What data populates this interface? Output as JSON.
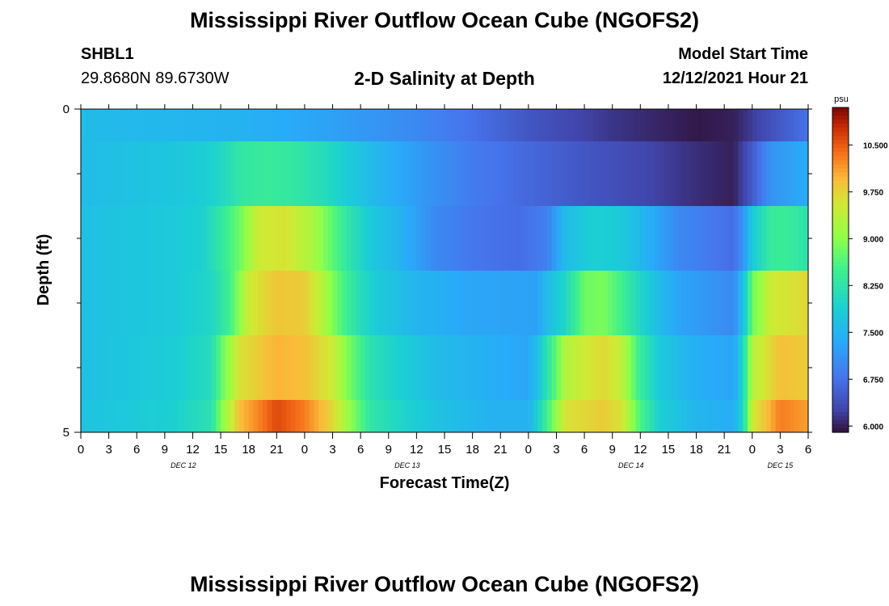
{
  "header": {
    "title": "Mississippi River Outflow Ocean Cube (NGOFS2)",
    "station_id": "SHBL1",
    "coordinates": "29.8680N  89.6730W",
    "subtitle": "2-D Salinity at Depth",
    "model_start_label": "Model Start Time",
    "model_start_value": "12/12/2021 Hour 21"
  },
  "footer": {
    "title": "Mississippi River Outflow Ocean Cube (NGOFS2)"
  },
  "colors": {
    "background": "#ffffff",
    "axis": "#000000"
  },
  "chart_data": {
    "type": "heatmap",
    "title": "2-D Salinity at Depth",
    "xlabel": "Forecast Time(Z)",
    "ylabel": "Depth (ft)",
    "units": "psu",
    "x_tick_labels": [
      "0",
      "3",
      "6",
      "9",
      "12",
      "15",
      "18",
      "21",
      "0",
      "3",
      "6",
      "9",
      "12",
      "15",
      "18",
      "21",
      "0",
      "3",
      "6",
      "9",
      "12",
      "15",
      "18",
      "21",
      "0",
      "3",
      "6"
    ],
    "x_hours": [
      0,
      3,
      6,
      9,
      12,
      15,
      18,
      21,
      24,
      27,
      30,
      33,
      36,
      39,
      42,
      45,
      48,
      51,
      54,
      57,
      60,
      63,
      66,
      69,
      72,
      75,
      78
    ],
    "date_labels": [
      {
        "text": "DEC 12",
        "hour": 11
      },
      {
        "text": "DEC 13",
        "hour": 35
      },
      {
        "text": "DEC 14",
        "hour": 59
      },
      {
        "text": "DEC 15",
        "hour": 75
      }
    ],
    "y_tick_labels": [
      "0",
      "5"
    ],
    "ylim": [
      0,
      5
    ],
    "xlim": [
      0,
      78
    ],
    "colorbar_ticks": [
      "10.500",
      "9.750",
      "9.000",
      "8.250",
      "7.500",
      "6.750",
      "6.000"
    ],
    "colorbar_range": [
      5.9,
      11.1
    ],
    "depth_layers": [
      {
        "depth_top": 0,
        "depth_bottom": 0.5,
        "keyframes": [
          [
            0,
            7.6
          ],
          [
            18,
            7.45
          ],
          [
            27,
            7.25
          ],
          [
            36,
            7.0
          ],
          [
            42,
            6.75
          ],
          [
            48,
            6.45
          ],
          [
            57,
            6.15
          ],
          [
            66,
            5.95
          ],
          [
            70,
            6.0
          ],
          [
            74,
            6.4
          ],
          [
            78,
            6.75
          ]
        ]
      },
      {
        "depth_top": 0.5,
        "depth_bottom": 1.5,
        "keyframes": [
          [
            0,
            7.6
          ],
          [
            10,
            7.75
          ],
          [
            13,
            7.85
          ],
          [
            15,
            8.0
          ],
          [
            17,
            8.3
          ],
          [
            20,
            8.4
          ],
          [
            23,
            8.3
          ],
          [
            26,
            8.1
          ],
          [
            29,
            7.8
          ],
          [
            32,
            7.5
          ],
          [
            36,
            7.2
          ],
          [
            42,
            6.85
          ],
          [
            48,
            6.65
          ],
          [
            54,
            6.45
          ],
          [
            60,
            6.3
          ],
          [
            66,
            6.1
          ],
          [
            70,
            6.0
          ],
          [
            72,
            6.5
          ],
          [
            74,
            7.1
          ],
          [
            78,
            7.4
          ]
        ]
      },
      {
        "depth_top": 1.5,
        "depth_bottom": 2.5,
        "keyframes": [
          [
            0,
            7.65
          ],
          [
            10,
            7.8
          ],
          [
            13,
            7.9
          ],
          [
            15,
            8.3
          ],
          [
            17,
            8.8
          ],
          [
            19,
            9.5
          ],
          [
            22,
            9.6
          ],
          [
            25,
            9.2
          ],
          [
            27,
            8.7
          ],
          [
            29,
            8.2
          ],
          [
            31,
            7.8
          ],
          [
            34,
            7.5
          ],
          [
            38,
            7.0
          ],
          [
            42,
            6.8
          ],
          [
            47,
            6.7
          ],
          [
            50,
            6.9
          ],
          [
            52,
            7.6
          ],
          [
            55,
            7.9
          ],
          [
            58,
            7.8
          ],
          [
            61,
            7.4
          ],
          [
            64,
            7.0
          ],
          [
            68,
            6.8
          ],
          [
            70,
            6.7
          ],
          [
            71,
            7.1
          ],
          [
            72,
            7.8
          ],
          [
            74,
            8.4
          ],
          [
            76,
            8.4
          ],
          [
            78,
            8.2
          ]
        ]
      },
      {
        "depth_top": 2.5,
        "depth_bottom": 3.5,
        "keyframes": [
          [
            0,
            7.65
          ],
          [
            10,
            7.8
          ],
          [
            14,
            8.0
          ],
          [
            16,
            8.5
          ],
          [
            18,
            9.5
          ],
          [
            21,
            9.85
          ],
          [
            24,
            9.8
          ],
          [
            26,
            9.3
          ],
          [
            28,
            8.6
          ],
          [
            30,
            8.1
          ],
          [
            32,
            7.8
          ],
          [
            36,
            7.5
          ],
          [
            42,
            7.3
          ],
          [
            49,
            7.25
          ],
          [
            50,
            7.6
          ],
          [
            52,
            8.0
          ],
          [
            54,
            8.8
          ],
          [
            56,
            8.9
          ],
          [
            58,
            8.5
          ],
          [
            60,
            8.0
          ],
          [
            62,
            7.6
          ],
          [
            64,
            7.3
          ],
          [
            68,
            7.1
          ],
          [
            70,
            7.0
          ],
          [
            71,
            7.6
          ],
          [
            72,
            8.8
          ],
          [
            74,
            9.5
          ],
          [
            78,
            9.7
          ]
        ]
      },
      {
        "depth_top": 3.5,
        "depth_bottom": 4.5,
        "keyframes": [
          [
            0,
            7.65
          ],
          [
            10,
            7.85
          ],
          [
            14,
            8.1
          ],
          [
            15,
            8.7
          ],
          [
            17,
            9.6
          ],
          [
            21,
            10.0
          ],
          [
            24,
            9.9
          ],
          [
            27,
            9.5
          ],
          [
            29,
            8.8
          ],
          [
            31,
            8.2
          ],
          [
            34,
            7.9
          ],
          [
            38,
            7.6
          ],
          [
            44,
            7.4
          ],
          [
            48,
            7.3
          ],
          [
            49,
            7.7
          ],
          [
            50,
            8.2
          ],
          [
            52,
            9.3
          ],
          [
            56,
            9.7
          ],
          [
            58,
            9.4
          ],
          [
            60,
            8.4
          ],
          [
            62,
            7.8
          ],
          [
            66,
            7.4
          ],
          [
            70,
            7.3
          ],
          [
            71,
            8.0
          ],
          [
            72,
            9.3
          ],
          [
            75,
            9.9
          ],
          [
            78,
            9.8
          ]
        ]
      },
      {
        "depth_top": 4.5,
        "depth_bottom": 5.0,
        "keyframes": [
          [
            0,
            7.7
          ],
          [
            10,
            7.9
          ],
          [
            14,
            8.2
          ],
          [
            15,
            8.9
          ],
          [
            17,
            9.9
          ],
          [
            21,
            10.6
          ],
          [
            24,
            10.3
          ],
          [
            27,
            9.7
          ],
          [
            29,
            9.0
          ],
          [
            31,
            8.3
          ],
          [
            34,
            8.0
          ],
          [
            38,
            7.7
          ],
          [
            44,
            7.45
          ],
          [
            48,
            7.45
          ],
          [
            49,
            7.9
          ],
          [
            50,
            8.5
          ],
          [
            52,
            9.6
          ],
          [
            56,
            9.8
          ],
          [
            58,
            9.6
          ],
          [
            60,
            8.6
          ],
          [
            62,
            7.9
          ],
          [
            66,
            7.5
          ],
          [
            70,
            7.4
          ],
          [
            71,
            8.0
          ],
          [
            72,
            9.5
          ],
          [
            75,
            10.3
          ],
          [
            78,
            10.1
          ]
        ]
      }
    ]
  }
}
